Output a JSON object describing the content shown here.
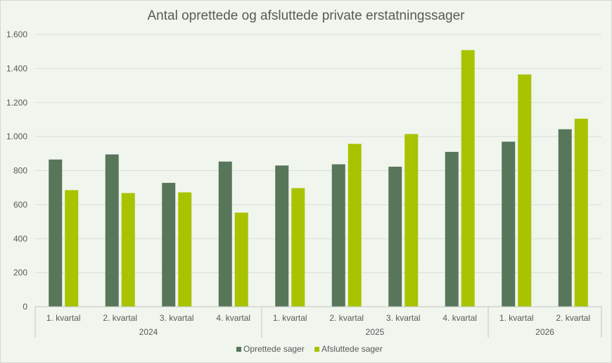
{
  "chart_data": {
    "type": "bar",
    "title": "Antal oprettede og afsluttede private erstatningssager",
    "categories": [
      "1. kvartal",
      "2. kvartal",
      "3. kvartal",
      "4. kvartal",
      "1. kvartal",
      "2. kvartal",
      "3. kvartal",
      "4. kvartal",
      "1. kvartal",
      "2. kvartal"
    ],
    "groups": [
      {
        "label": "2024",
        "count": 4
      },
      {
        "label": "2025",
        "count": 4
      },
      {
        "label": "2026",
        "count": 2
      }
    ],
    "series": [
      {
        "name": "Oprettede sager",
        "color": "#58765a",
        "values": [
          865,
          895,
          728,
          853,
          830,
          837,
          823,
          910,
          970,
          1043
        ]
      },
      {
        "name": "Afsluttede sager",
        "color": "#a9c300",
        "values": [
          685,
          668,
          672,
          553,
          697,
          957,
          1015,
          1508,
          1365,
          1105
        ]
      }
    ],
    "ylim": [
      0,
      1600
    ],
    "yticks": [
      0,
      200,
      400,
      600,
      800,
      1000,
      1200,
      1400,
      1600
    ],
    "ytick_labels": [
      "0",
      "200",
      "400",
      "600",
      "800",
      "1.000",
      "1.200",
      "1.400",
      "1.600"
    ],
    "grid": true,
    "legend_position": "bottom"
  }
}
